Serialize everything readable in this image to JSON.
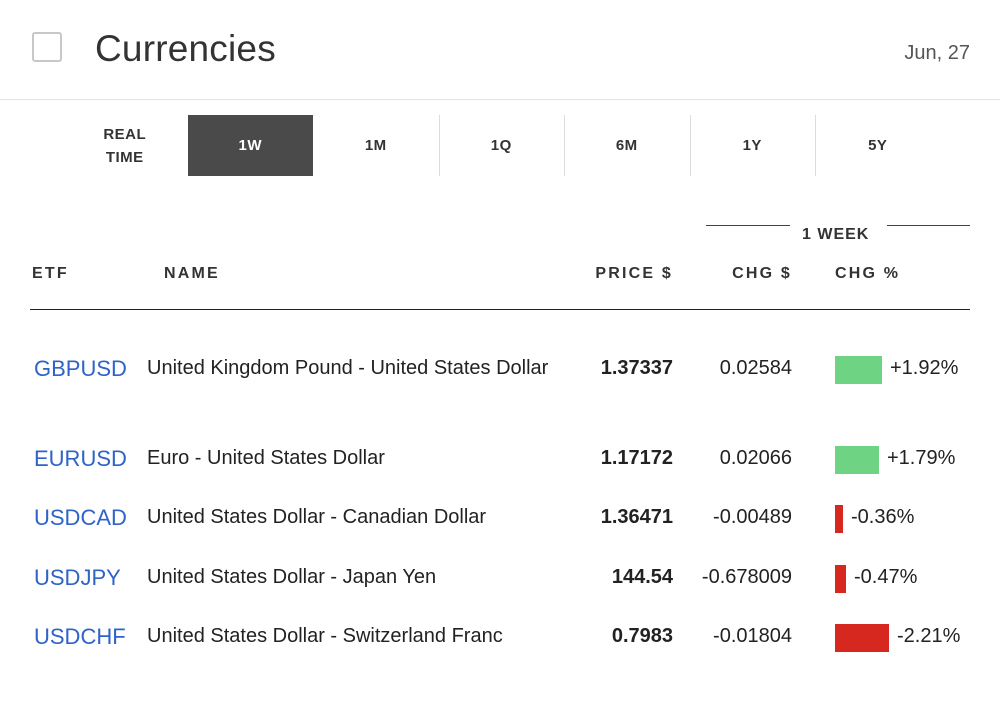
{
  "header": {
    "title": "Currencies",
    "date": "Jun, 27"
  },
  "tabs": {
    "realtime_line1": "REAL",
    "realtime_line2": "TIME",
    "items": [
      {
        "label": "1W",
        "active": true
      },
      {
        "label": "1M",
        "active": false
      },
      {
        "label": "1Q",
        "active": false
      },
      {
        "label": "6M",
        "active": false
      },
      {
        "label": "1Y",
        "active": false
      },
      {
        "label": "5Y",
        "active": false
      }
    ]
  },
  "table": {
    "group_label": "1 WEEK",
    "columns": {
      "etf": "ETF",
      "name": "NAME",
      "price": "PRICE $",
      "chg": "CHG $",
      "pct": "CHG %"
    },
    "rows": [
      {
        "symbol": "GBPUSD",
        "name": "United Kingdom Pound - United States Dollar",
        "price": "1.37337",
        "chg": "0.02584",
        "pct": "+1.92%"
      },
      {
        "symbol": "EURUSD",
        "name": "Euro - United States Dollar",
        "price": "1.17172",
        "chg": "0.02066",
        "pct": "+1.79%"
      },
      {
        "symbol": "USDCAD",
        "name": "United States Dollar - Canadian Dollar",
        "price": "1.36471",
        "chg": "-0.00489",
        "pct": "-0.36%"
      },
      {
        "symbol": "USDJPY",
        "name": "United States Dollar - Japan Yen",
        "price": "144.54",
        "chg": "-0.678009",
        "pct": "-0.47%"
      },
      {
        "symbol": "USDCHF",
        "name": "United States Dollar - Switzerland Franc",
        "price": "0.7983",
        "chg": "-0.01804",
        "pct": "-2.21%"
      }
    ]
  },
  "colors": {
    "positive": "#6fd384",
    "negative": "#d7281f",
    "link": "#2e63c7",
    "active_tab": "#4a4a4a"
  }
}
